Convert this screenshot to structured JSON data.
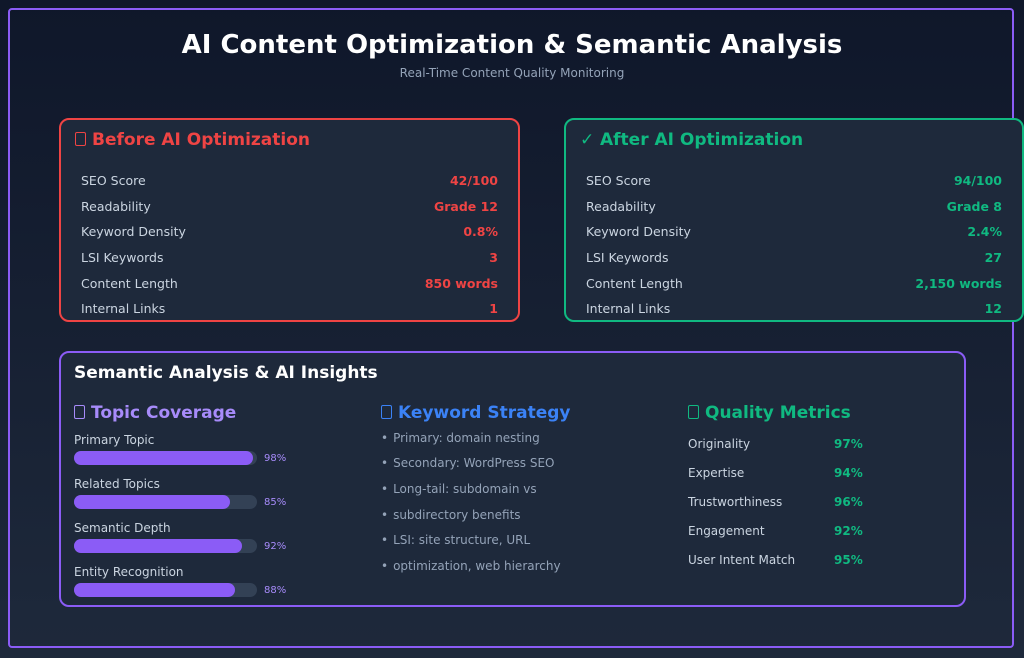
{
  "header": {
    "title": "AI Content Optimization & Semantic Analysis",
    "subtitle": "Real-Time Content Quality Monitoring"
  },
  "before": {
    "title": "Before AI Optimization",
    "icon": "box-glyph-icon",
    "color": "#ef4444",
    "rows": [
      {
        "label": "SEO Score",
        "value": "42/100"
      },
      {
        "label": "Readability",
        "value": "Grade 12"
      },
      {
        "label": "Keyword Density",
        "value": "0.8%"
      },
      {
        "label": "LSI Keywords",
        "value": "3"
      },
      {
        "label": "Content Length",
        "value": "850 words"
      },
      {
        "label": "Internal Links",
        "value": "1"
      }
    ]
  },
  "after": {
    "title": "After AI Optimization",
    "icon": "checkmark-icon",
    "icon_glyph": "✓",
    "color": "#10b981",
    "rows": [
      {
        "label": "SEO Score",
        "value": "94/100"
      },
      {
        "label": "Readability",
        "value": "Grade 8"
      },
      {
        "label": "Keyword Density",
        "value": "2.4%"
      },
      {
        "label": "LSI Keywords",
        "value": "27"
      },
      {
        "label": "Content Length",
        "value": "2,150 words"
      },
      {
        "label": "Internal Links",
        "value": "12"
      }
    ]
  },
  "semantic": {
    "title": "Semantic Analysis & AI Insights",
    "accent": "#8b5cf6",
    "topic_coverage": {
      "title": "Topic Coverage",
      "items": [
        {
          "label": "Primary Topic",
          "percent": 98,
          "percent_label": "98%"
        },
        {
          "label": "Related Topics",
          "percent": 85,
          "percent_label": "85%"
        },
        {
          "label": "Semantic Depth",
          "percent": 92,
          "percent_label": "92%"
        },
        {
          "label": "Entity Recognition",
          "percent": 88,
          "percent_label": "88%"
        }
      ]
    },
    "keyword_strategy": {
      "title": "Keyword Strategy",
      "bullet": "•",
      "items": [
        "Primary: domain nesting",
        "Secondary: WordPress SEO",
        "Long-tail: subdomain vs",
        "subdirectory benefits",
        "LSI: site structure, URL",
        "optimization, web hierarchy"
      ]
    },
    "quality_metrics": {
      "title": "Quality Metrics",
      "items": [
        {
          "label": "Originality",
          "value": "97%"
        },
        {
          "label": "Expertise",
          "value": "94%"
        },
        {
          "label": "Trustworthiness",
          "value": "96%"
        },
        {
          "label": "Engagement",
          "value": "92%"
        },
        {
          "label": "User Intent Match",
          "value": "95%"
        }
      ]
    }
  }
}
